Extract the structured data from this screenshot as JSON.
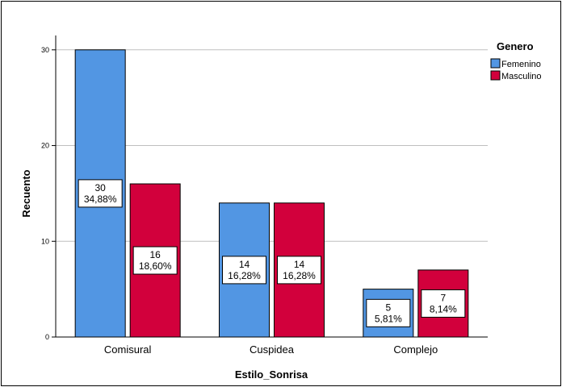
{
  "chart_data": {
    "type": "bar",
    "categories": [
      "Comisural",
      "Cuspidea",
      "Complejo"
    ],
    "series": [
      {
        "name": "Femenino",
        "values": [
          30,
          14,
          5
        ],
        "percent_labels": [
          "34,88%",
          "16,28%",
          "5,81%"
        ]
      },
      {
        "name": "Masculino",
        "values": [
          16,
          14,
          7
        ],
        "percent_labels": [
          "18,60%",
          "16,28%",
          "8,14%"
        ]
      }
    ],
    "xlabel": "Estilo_Sonrisa",
    "ylabel": "Recuento",
    "legend_title": "Genero",
    "legend_position": "top-right",
    "ylim": [
      0,
      31.5
    ],
    "yticks": [
      0,
      10,
      20,
      30
    ],
    "grid": true,
    "colors": {
      "Femenino": "#5296E3",
      "Masculino": "#D2003C",
      "gridline": "#BFBFBF",
      "bar_border": "#000000"
    }
  }
}
